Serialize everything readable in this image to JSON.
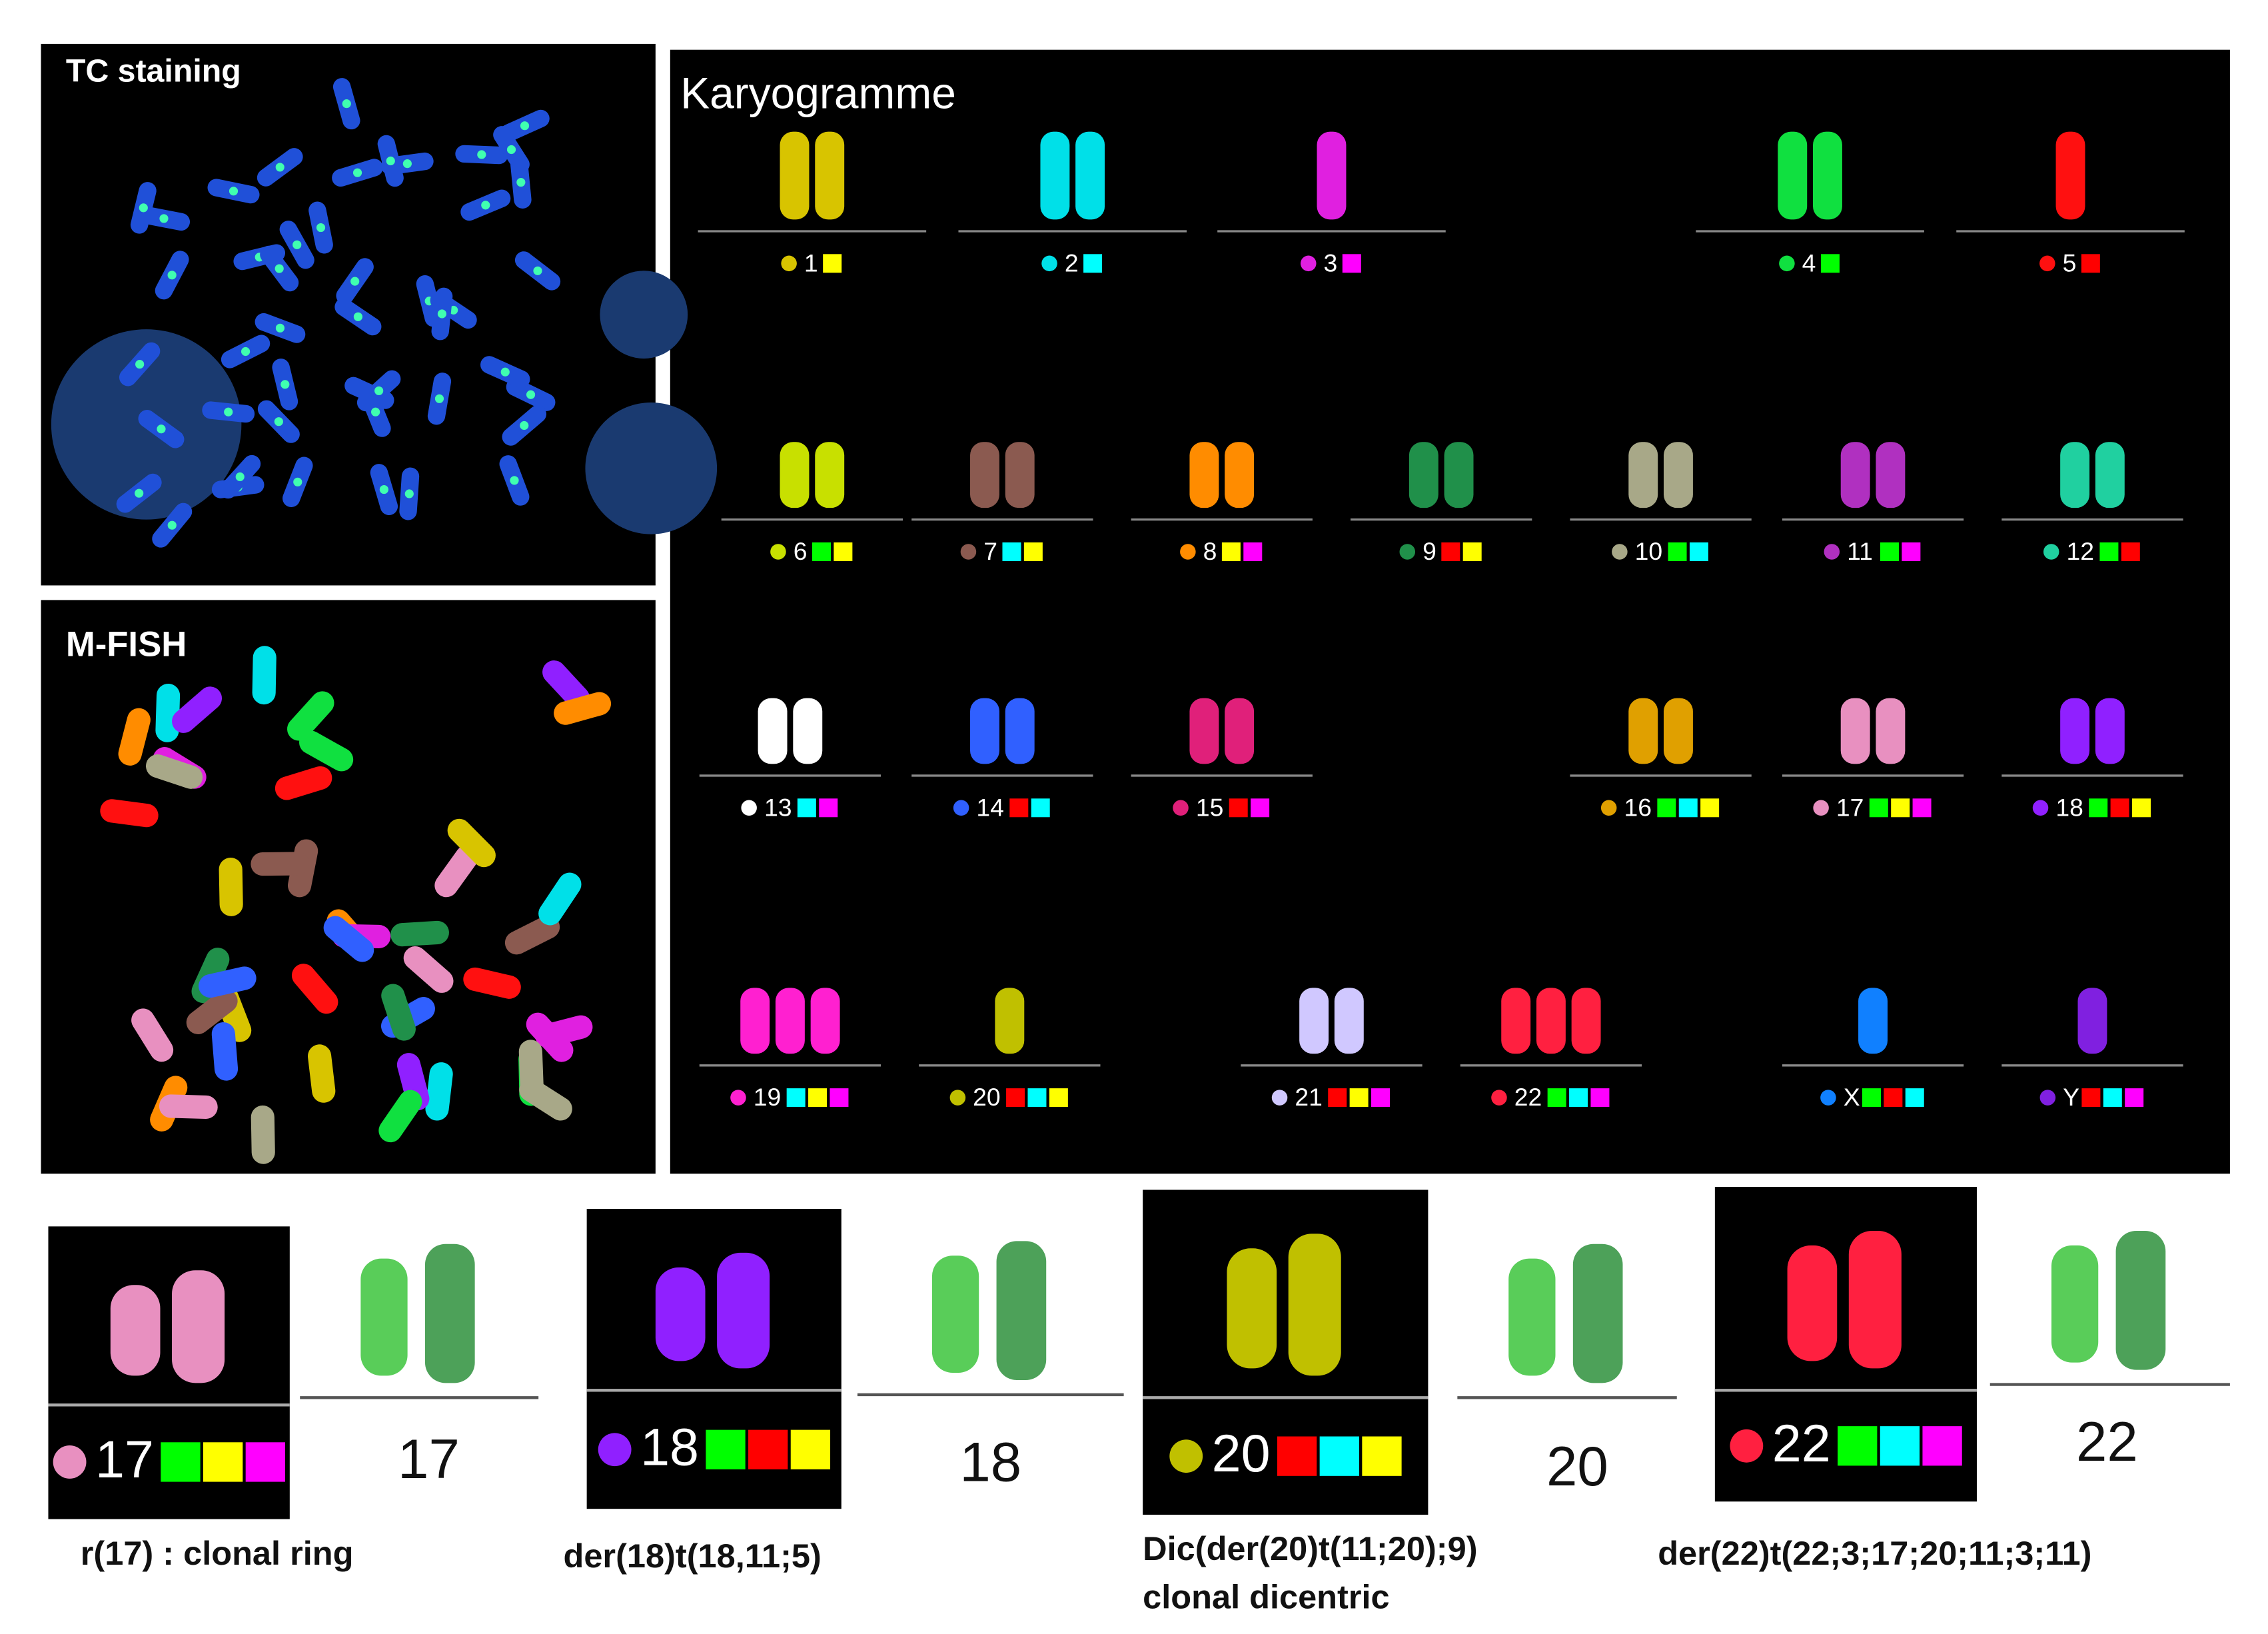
{
  "panels": {
    "tc": "TC staining",
    "mfish": "M-FISH",
    "karyogram": "Karyogramme"
  },
  "karyogram": [
    {
      "label": "1",
      "color": "#d8c400",
      "squares": [
        "#ffff00"
      ]
    },
    {
      "label": "2",
      "color": "#00e0e8",
      "squares": [
        "#00ffff"
      ]
    },
    {
      "label": "3",
      "color": "#e020e0",
      "squares": [
        "#ff00ff"
      ]
    },
    {
      "label": "4",
      "color": "#10e040",
      "squares": [
        "#00ff00"
      ]
    },
    {
      "label": "5",
      "color": "#ff1010",
      "squares": [
        "#ff0000"
      ]
    },
    {
      "label": "6",
      "color": "#c8e000",
      "squares": [
        "#00ff00",
        "#ffff00"
      ]
    },
    {
      "label": "7",
      "color": "#8b5a50",
      "squares": [
        "#00ffff",
        "#ffff00"
      ]
    },
    {
      "label": "8",
      "color": "#ff8c00",
      "squares": [
        "#ffff00",
        "#ff00ff"
      ]
    },
    {
      "label": "9",
      "color": "#20904a",
      "squares": [
        "#ff0000",
        "#ffff00"
      ]
    },
    {
      "label": "10",
      "color": "#a8a888",
      "squares": [
        "#00ff00",
        "#00ffff"
      ]
    },
    {
      "label": "11",
      "color": "#b030c0",
      "squares": [
        "#00ff00",
        "#ff00ff"
      ]
    },
    {
      "label": "12",
      "color": "#20d0a0",
      "squares": [
        "#00ff00",
        "#ff0000"
      ]
    },
    {
      "label": "13",
      "color": "#ffffff",
      "squares": [
        "#00ffff",
        "#ff00ff"
      ]
    },
    {
      "label": "14",
      "color": "#3060ff",
      "squares": [
        "#ff0000",
        "#00ffff"
      ]
    },
    {
      "label": "15",
      "color": "#e0207a",
      "squares": [
        "#ff0000",
        "#ff00ff"
      ]
    },
    {
      "label": "16",
      "color": "#e0a000",
      "squares": [
        "#00ff00",
        "#00ffff",
        "#ffff00"
      ]
    },
    {
      "label": "17",
      "color": "#e890c0",
      "squares": [
        "#00ff00",
        "#ffff00",
        "#ff00ff"
      ]
    },
    {
      "label": "18",
      "color": "#9020ff",
      "squares": [
        "#00ff00",
        "#ff0000",
        "#ffff00"
      ]
    },
    {
      "label": "19",
      "color": "#ff20d0",
      "squares": [
        "#00ffff",
        "#ffff00",
        "#ff00ff"
      ]
    },
    {
      "label": "20",
      "color": "#c0c000",
      "squares": [
        "#ff0000",
        "#00ffff",
        "#ffff00"
      ]
    },
    {
      "label": "21",
      "color": "#d0c8ff",
      "squares": [
        "#ff0000",
        "#ffff00",
        "#ff00ff"
      ]
    },
    {
      "label": "22",
      "color": "#ff2040",
      "squares": [
        "#00ff00",
        "#00ffff",
        "#ff00ff"
      ]
    },
    {
      "label": "X",
      "color": "#1080ff",
      "squares": [
        "#00ff00",
        "#ff0000",
        "#00ffff"
      ]
    },
    {
      "label": "Y",
      "color": "#8020e0",
      "squares": [
        "#ff0000",
        "#00ffff",
        "#ff00ff"
      ]
    }
  ],
  "details": [
    {
      "label": "17",
      "color": "#e890c0",
      "squares": [
        "#00ff00",
        "#ffff00",
        "#ff00ff"
      ],
      "side_label": "17",
      "caption": [
        "r(17) : clonal ring"
      ]
    },
    {
      "label": "18",
      "color": "#9020ff",
      "squares": [
        "#00ff00",
        "#ff0000",
        "#ffff00"
      ],
      "side_label": "18",
      "caption": [
        "der(18)t(18,11;5)"
      ]
    },
    {
      "label": "20",
      "color": "#c0c000",
      "squares": [
        "#ff0000",
        "#00ffff",
        "#ffff00"
      ],
      "side_label": "20",
      "caption": [
        "Dic(der(20)t(11;20);9)",
        "clonal dicentric"
      ]
    },
    {
      "label": "22",
      "color": "#ff2040",
      "squares": [
        "#00ff00",
        "#00ffff",
        "#ff00ff"
      ],
      "side_label": "22",
      "caption": [
        "der(22)t(22;3;17;20;11;3;11)"
      ]
    }
  ]
}
